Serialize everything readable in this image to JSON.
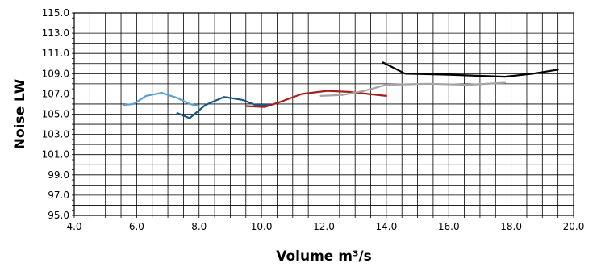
{
  "chart_data": {
    "type": "line",
    "title": "",
    "xlabel": "Volume m³/s",
    "ylabel": "Noise LW",
    "xlim": [
      4.0,
      20.0
    ],
    "ylim": [
      95.0,
      115.0
    ],
    "grid": true,
    "legend": "none",
    "x_ticks": [
      "4.0",
      "6.0",
      "8.0",
      "10.0",
      "12.0",
      "14.0",
      "16.0",
      "18.0",
      "20.0"
    ],
    "y_ticks": [
      "95.0",
      "97.0",
      "99.0",
      "101.0",
      "103.0",
      "105.0",
      "107.0",
      "109.0",
      "111.0",
      "113.0",
      "115.0"
    ],
    "series": [
      {
        "color": "#5a9fd0",
        "points": [
          [
            5.6,
            105.9
          ],
          [
            5.9,
            106.0
          ],
          [
            6.3,
            106.8
          ],
          [
            6.8,
            107.1
          ],
          [
            7.3,
            106.6
          ],
          [
            7.7,
            106.0
          ],
          [
            8.0,
            105.8
          ]
        ]
      },
      {
        "color": "#1a5782",
        "points": [
          [
            7.3,
            105.1
          ],
          [
            7.7,
            104.6
          ],
          [
            8.2,
            105.9
          ],
          [
            8.8,
            106.7
          ],
          [
            9.4,
            106.4
          ],
          [
            9.8,
            105.9
          ],
          [
            10.2,
            105.9
          ]
        ]
      },
      {
        "color": "#a81c1c",
        "points": [
          [
            9.5,
            105.8
          ],
          [
            10.1,
            105.7
          ],
          [
            10.6,
            106.2
          ],
          [
            11.3,
            107.0
          ],
          [
            12.1,
            107.3
          ],
          [
            12.8,
            107.2
          ],
          [
            13.4,
            107.0
          ],
          [
            14.0,
            106.8
          ]
        ]
      },
      {
        "color": "#a4a4a4",
        "points": [
          [
            11.9,
            106.8
          ],
          [
            12.6,
            106.9
          ],
          [
            13.3,
            107.3
          ],
          [
            14.0,
            107.9
          ],
          [
            15.4,
            108.0
          ],
          [
            16.6,
            107.9
          ],
          [
            17.8,
            108.1
          ]
        ]
      },
      {
        "color": "#000000",
        "points": [
          [
            13.9,
            110.1
          ],
          [
            14.6,
            109.0
          ],
          [
            16.0,
            108.9
          ],
          [
            17.8,
            108.7
          ],
          [
            18.7,
            109.0
          ],
          [
            19.5,
            109.4
          ]
        ]
      }
    ]
  }
}
